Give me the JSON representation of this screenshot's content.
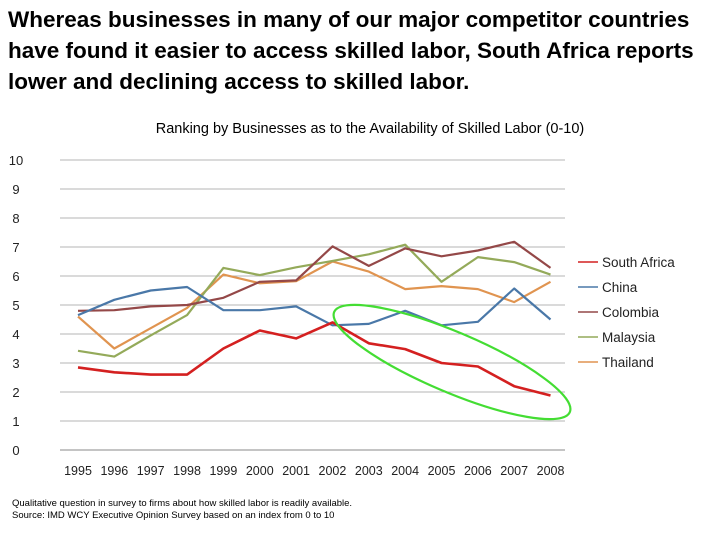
{
  "headline": "Whereas businesses in many of our major competitor countries have found it easier to access skilled labor, South Africa reports lower and declining access to skilled labor.",
  "footnote": {
    "line1": "Qualitative question in survey to firms about how skilled labor is readily available.",
    "line2": "Source: IMD WCY Executive Opinion Survey based on an index from 0 to 10"
  },
  "colors": {
    "highlight_ellipse": "#44dd33"
  },
  "chart_data": {
    "type": "line",
    "title": "Ranking by Businesses as to the Availability of Skilled Labor (0-10)",
    "xlabel": "",
    "ylabel": "",
    "ylim": [
      0,
      10
    ],
    "grid": true,
    "legend": "right",
    "x": [
      "1995",
      "1996",
      "1997",
      "1998",
      "1999",
      "2000",
      "2001",
      "2002",
      "2003",
      "2004",
      "2005",
      "2006",
      "2007",
      "2008"
    ],
    "yticks": [
      "0",
      "1",
      "2",
      "3",
      "4",
      "5",
      "6",
      "7",
      "8",
      "9",
      "10"
    ],
    "series": [
      {
        "name": "South Africa",
        "color": "#d42020",
        "values": [
          2.85,
          2.68,
          2.6,
          2.6,
          3.5,
          4.12,
          3.85,
          4.4,
          3.68,
          3.48,
          3.0,
          2.88,
          2.2,
          1.88
        ]
      },
      {
        "name": "China",
        "color": "#4a78a8",
        "values": [
          4.65,
          5.18,
          5.5,
          5.62,
          4.82,
          4.82,
          4.95,
          4.3,
          4.35,
          4.8,
          4.3,
          4.42,
          5.57,
          4.5
        ]
      },
      {
        "name": "Colombia",
        "color": "#944848",
        "values": [
          4.8,
          4.82,
          4.95,
          5.0,
          5.25,
          5.8,
          5.85,
          7.02,
          6.35,
          6.95,
          6.68,
          6.88,
          7.18,
          6.28
        ]
      },
      {
        "name": "Malaysia",
        "color": "#94aa5a",
        "values": [
          3.42,
          3.22,
          3.95,
          4.65,
          6.28,
          6.03,
          6.3,
          6.52,
          6.75,
          7.08,
          5.8,
          6.65,
          6.48,
          6.05
        ]
      },
      {
        "name": "Thailand",
        "color": "#e09450",
        "values": [
          4.6,
          3.5,
          4.2,
          4.9,
          6.05,
          5.75,
          5.82,
          6.5,
          6.15,
          5.55,
          5.65,
          5.55,
          5.1,
          5.8
        ]
      }
    ]
  }
}
